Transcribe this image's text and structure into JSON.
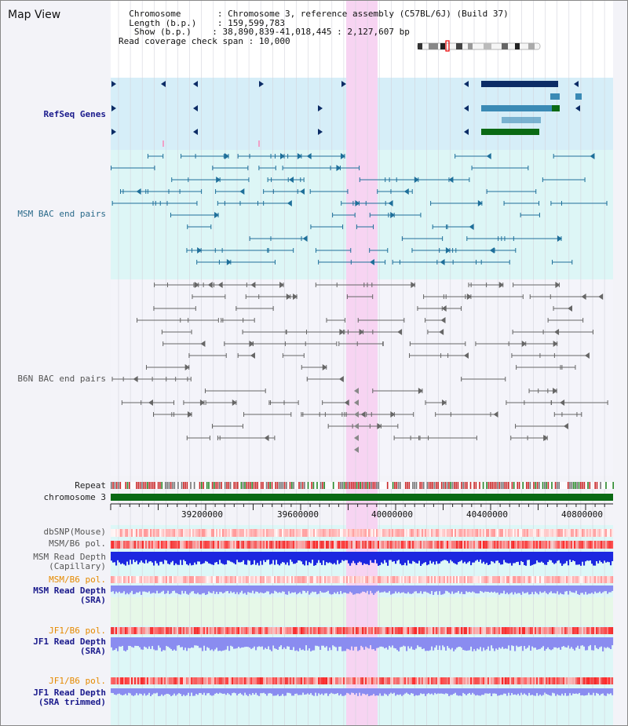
{
  "title": "Map View",
  "info": {
    "chromosome_label": "Chromosome",
    "chromosome_value": "Chromosome 3, reference assembly (C57BL/6J) (Build 37)",
    "length_label": "Length (b.p.)",
    "length_value": "159,599,783",
    "show_label": "Show (b.p.)",
    "show_value": "38,890,839-41,018,445 : 2,127,607 bp",
    "span_label": "Read coverage check span",
    "span_value": "10,000"
  },
  "tracks": {
    "refseq": "RefSeq Genes",
    "msm_bac": "MSM BAC end pairs",
    "b6n_bac": "B6N BAC end pairs",
    "repeat": "Repeat",
    "chromosome": "chromosome 3",
    "dbsnp": "dbSNP(Mouse)",
    "msm_b6_pol_1": "MSM/B6 pol.",
    "msm_depth_cap_1": "MSM Read Depth",
    "msm_depth_cap_2": "(Capillary)",
    "msm_b6_pol_2": "MSM/B6 pol.",
    "msm_depth_sra_1": "MSM Read Depth",
    "msm_depth_sra_2": "(SRA)",
    "jf1_b6_pol_1": "JF1/B6 pol.",
    "jf1_depth_sra_1": "JF1 Read Depth",
    "jf1_depth_sra_2": "(SRA)",
    "jf1_b6_pol_2": "JF1/B6 pol.",
    "jf1_depth_trim_1": "JF1 Read Depth",
    "jf1_depth_trim_2": "(SRA trimmed)"
  },
  "axis": {
    "ticks": [
      "39200000",
      "39600000",
      "40000000",
      "40400000",
      "40800000"
    ]
  },
  "colors": {
    "highlight": "#f7d4f2",
    "refseq_bg": "#d6eef8",
    "msm_bg": "#ddf6f6",
    "refseq_dark": "#0c2c66",
    "refseq_mid": "#3a8ab5",
    "refseq_green": "#0a6a14",
    "msm_feature": "#1e6f9a",
    "b6n_feature": "#666666",
    "chromosome_bar": "#0a6a14",
    "depth_blue": "#1c27e0",
    "depth_light": "#8a8cf0"
  }
}
